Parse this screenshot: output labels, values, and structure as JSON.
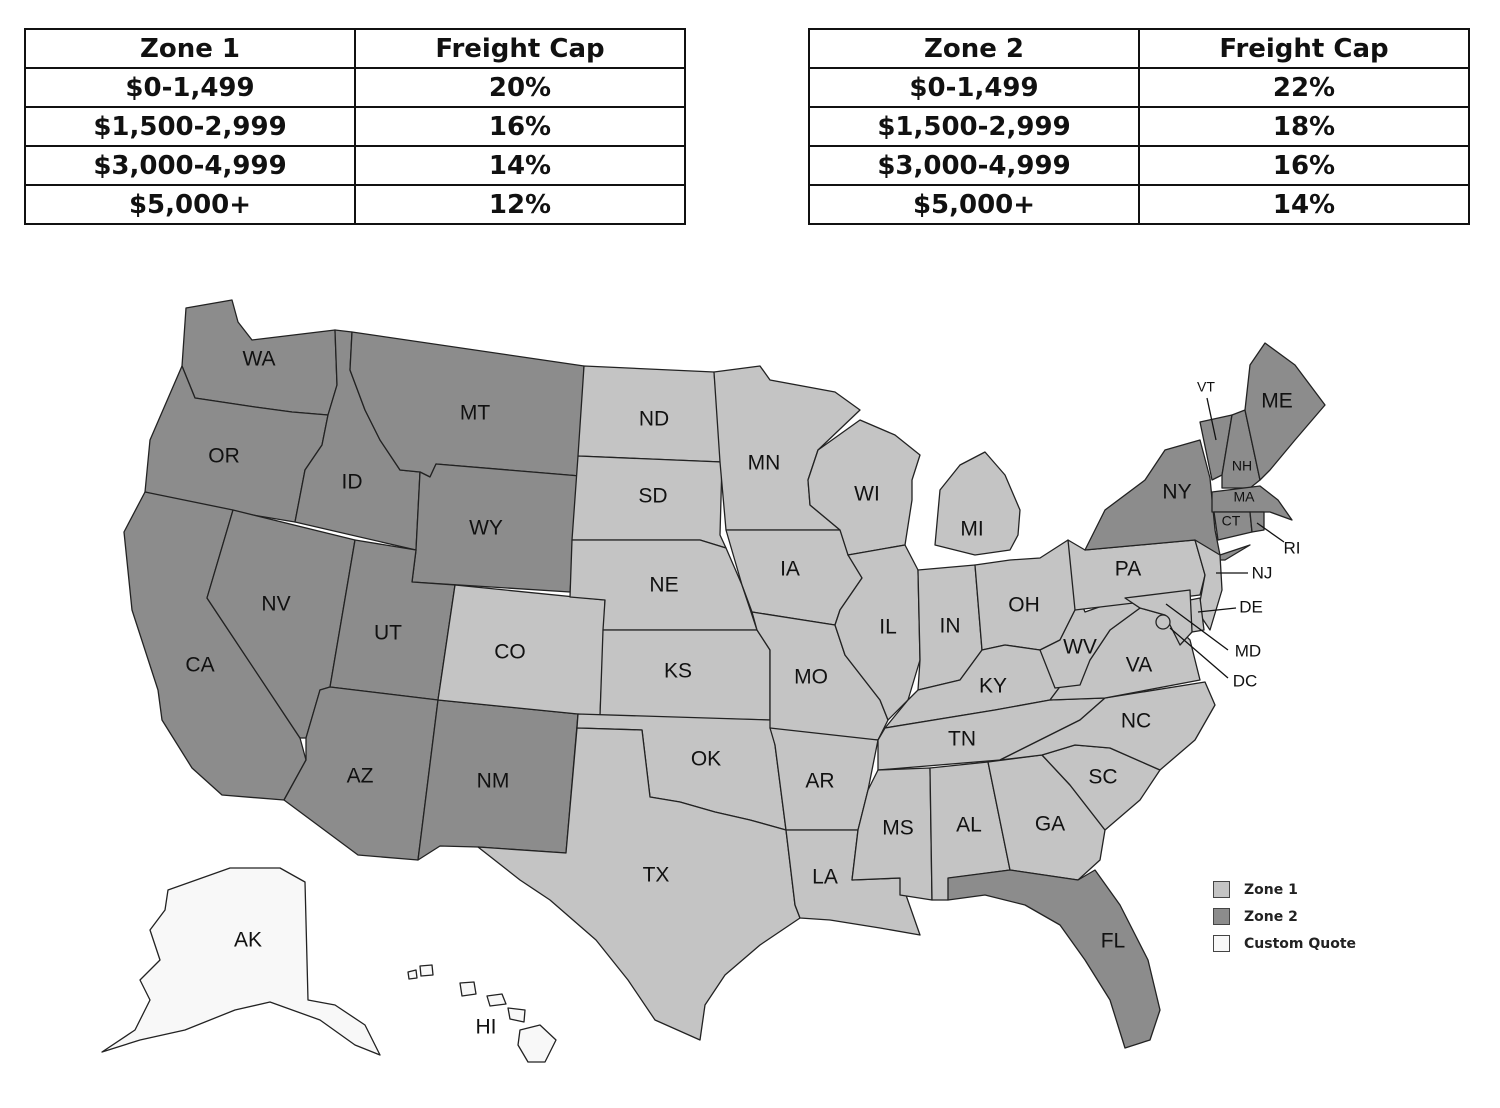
{
  "tables": [
    {
      "header": {
        "zone": "Zone 1",
        "cap": "Freight Cap"
      },
      "rows": [
        {
          "range": "$0-1,499",
          "cap": "20%"
        },
        {
          "range": "$1,500-2,999",
          "cap": "16%"
        },
        {
          "range": "$3,000-4,999",
          "cap": "14%"
        },
        {
          "range": "$5,000+",
          "cap": "12%"
        }
      ]
    },
    {
      "header": {
        "zone": "Zone 2",
        "cap": "Freight Cap"
      },
      "rows": [
        {
          "range": "$0-1,499",
          "cap": "22%"
        },
        {
          "range": "$1,500-2,999",
          "cap": "18%"
        },
        {
          "range": "$3,000-4,999",
          "cap": "16%"
        },
        {
          "range": "$5,000+",
          "cap": "14%"
        }
      ]
    }
  ],
  "colors": {
    "zone1": "#c4c4c4",
    "zone2": "#8c8c8c",
    "custom": "#f8f8f8"
  },
  "legend": [
    {
      "label": "Zone 1",
      "zone": "zone1"
    },
    {
      "label": "Zone 2",
      "zone": "zone2"
    },
    {
      "label": "Custom Quote",
      "zone": "custom"
    }
  ],
  "states": [
    {
      "abbr": "WA",
      "zone": "zone2"
    },
    {
      "abbr": "OR",
      "zone": "zone2"
    },
    {
      "abbr": "CA",
      "zone": "zone2"
    },
    {
      "abbr": "NV",
      "zone": "zone2"
    },
    {
      "abbr": "ID",
      "zone": "zone2"
    },
    {
      "abbr": "MT",
      "zone": "zone2"
    },
    {
      "abbr": "WY",
      "zone": "zone2"
    },
    {
      "abbr": "UT",
      "zone": "zone2"
    },
    {
      "abbr": "AZ",
      "zone": "zone2"
    },
    {
      "abbr": "NM",
      "zone": "zone2"
    },
    {
      "abbr": "CO",
      "zone": "zone1"
    },
    {
      "abbr": "ND",
      "zone": "zone1"
    },
    {
      "abbr": "SD",
      "zone": "zone1"
    },
    {
      "abbr": "NE",
      "zone": "zone1"
    },
    {
      "abbr": "KS",
      "zone": "zone1"
    },
    {
      "abbr": "OK",
      "zone": "zone1"
    },
    {
      "abbr": "TX",
      "zone": "zone1"
    },
    {
      "abbr": "MN",
      "zone": "zone1"
    },
    {
      "abbr": "IA",
      "zone": "zone1"
    },
    {
      "abbr": "MO",
      "zone": "zone1"
    },
    {
      "abbr": "AR",
      "zone": "zone1"
    },
    {
      "abbr": "LA",
      "zone": "zone1"
    },
    {
      "abbr": "WI",
      "zone": "zone1"
    },
    {
      "abbr": "IL",
      "zone": "zone1"
    },
    {
      "abbr": "MI",
      "zone": "zone1"
    },
    {
      "abbr": "IN",
      "zone": "zone1"
    },
    {
      "abbr": "OH",
      "zone": "zone1"
    },
    {
      "abbr": "KY",
      "zone": "zone1"
    },
    {
      "abbr": "TN",
      "zone": "zone1"
    },
    {
      "abbr": "MS",
      "zone": "zone1"
    },
    {
      "abbr": "AL",
      "zone": "zone1"
    },
    {
      "abbr": "GA",
      "zone": "zone1"
    },
    {
      "abbr": "FL",
      "zone": "zone2"
    },
    {
      "abbr": "SC",
      "zone": "zone1"
    },
    {
      "abbr": "NC",
      "zone": "zone1"
    },
    {
      "abbr": "VA",
      "zone": "zone1"
    },
    {
      "abbr": "WV",
      "zone": "zone1"
    },
    {
      "abbr": "PA",
      "zone": "zone1"
    },
    {
      "abbr": "NY",
      "zone": "zone2"
    },
    {
      "abbr": "VT",
      "zone": "zone2"
    },
    {
      "abbr": "NH",
      "zone": "zone2"
    },
    {
      "abbr": "ME",
      "zone": "zone2"
    },
    {
      "abbr": "MA",
      "zone": "zone2"
    },
    {
      "abbr": "CT",
      "zone": "zone2"
    },
    {
      "abbr": "RI",
      "zone": "zone2"
    },
    {
      "abbr": "NJ",
      "zone": "zone1"
    },
    {
      "abbr": "DE",
      "zone": "zone1"
    },
    {
      "abbr": "MD",
      "zone": "zone1"
    },
    {
      "abbr": "DC",
      "zone": "zone1"
    },
    {
      "abbr": "AK",
      "zone": "custom"
    },
    {
      "abbr": "HI",
      "zone": "custom"
    }
  ]
}
